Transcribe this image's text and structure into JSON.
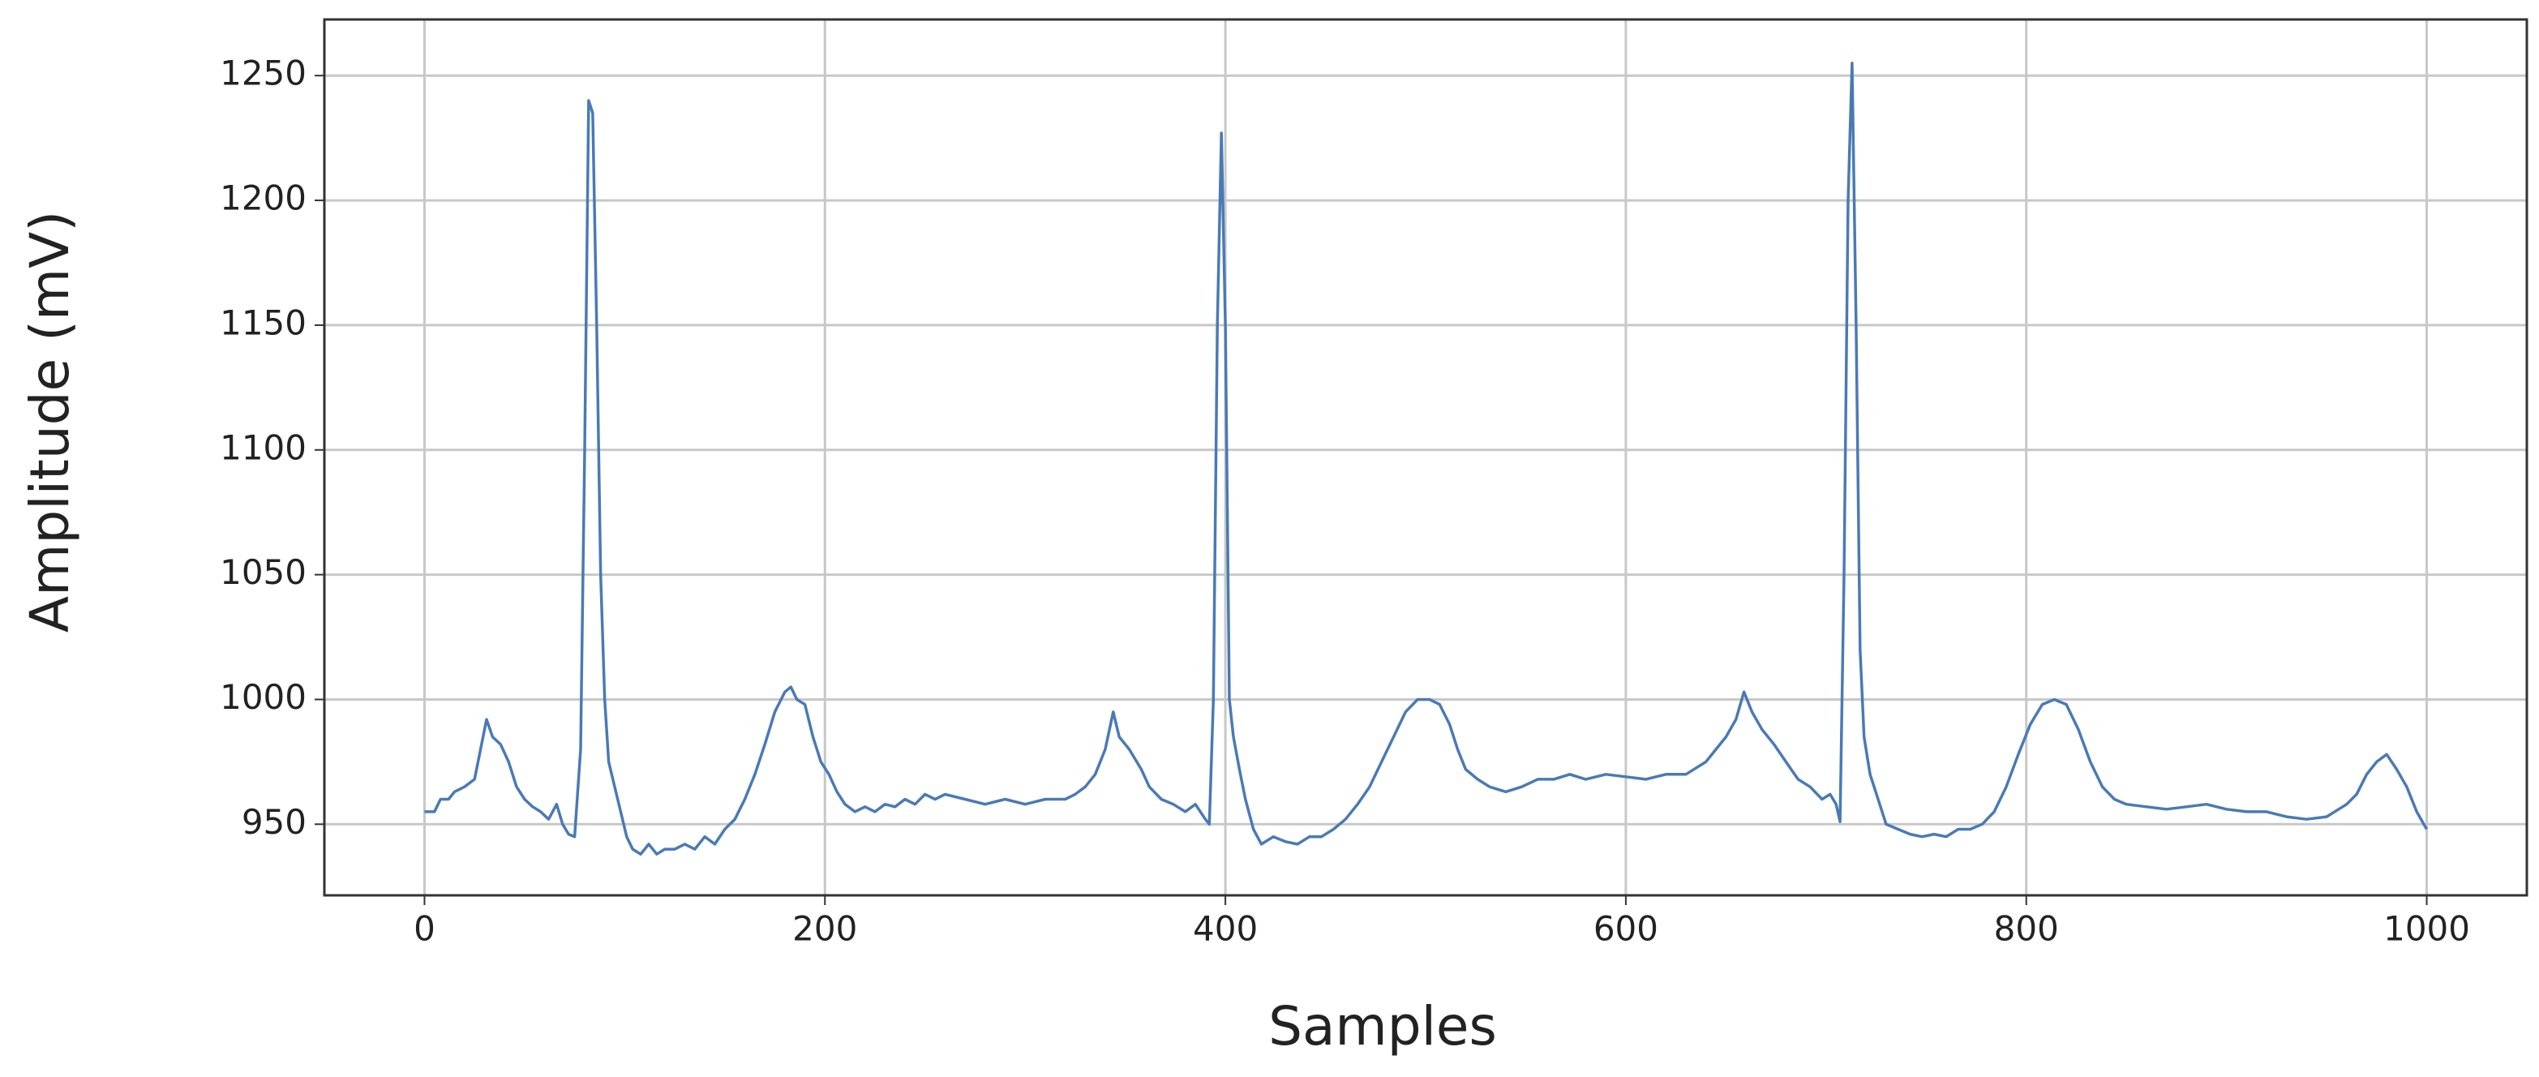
{
  "chart_data": {
    "type": "line",
    "x_label": "Samples",
    "y_label": "Amplitude (mV)",
    "x": [
      0,
      5,
      8,
      12,
      15,
      20,
      25,
      28,
      31,
      34,
      38,
      42,
      46,
      50,
      54,
      58,
      62,
      66,
      69,
      72,
      75,
      78,
      80,
      82,
      84,
      86,
      88,
      90,
      92,
      95,
      98,
      101,
      104,
      108,
      112,
      116,
      120,
      125,
      130,
      135,
      140,
      145,
      150,
      155,
      160,
      165,
      170,
      175,
      180,
      183,
      186,
      190,
      194,
      198,
      202,
      206,
      210,
      215,
      220,
      225,
      230,
      235,
      240,
      245,
      250,
      255,
      260,
      270,
      280,
      290,
      300,
      310,
      320,
      325,
      330,
      335,
      340,
      344,
      347,
      352,
      358,
      362,
      368,
      374,
      380,
      385,
      390,
      392,
      394,
      396,
      398,
      400,
      402,
      404,
      407,
      410,
      414,
      418,
      424,
      430,
      436,
      442,
      448,
      454,
      460,
      466,
      472,
      478,
      484,
      490,
      496,
      502,
      507,
      512,
      516,
      520,
      526,
      532,
      540,
      548,
      556,
      564,
      572,
      580,
      590,
      600,
      610,
      620,
      630,
      640,
      645,
      650,
      655,
      659,
      663,
      668,
      674,
      680,
      686,
      692,
      698,
      702,
      705,
      707,
      709,
      711,
      713,
      715,
      717,
      719,
      722,
      726,
      730,
      736,
      742,
      748,
      754,
      760,
      766,
      772,
      778,
      784,
      790,
      796,
      802,
      808,
      814,
      820,
      826,
      832,
      838,
      844,
      850,
      860,
      870,
      880,
      890,
      900,
      910,
      920,
      930,
      940,
      950,
      960,
      965,
      970,
      975,
      980,
      985,
      990,
      995,
      1000
    ],
    "values": [
      955,
      955,
      960,
      960,
      963,
      965,
      968,
      980,
      992,
      985,
      982,
      975,
      965,
      960,
      957,
      955,
      952,
      958,
      950,
      946,
      945,
      980,
      1100,
      1240,
      1235,
      1150,
      1050,
      1000,
      975,
      965,
      955,
      945,
      940,
      938,
      942,
      938,
      940,
      940,
      942,
      940,
      945,
      942,
      948,
      952,
      960,
      970,
      982,
      995,
      1003,
      1005,
      1000,
      998,
      985,
      975,
      970,
      963,
      958,
      955,
      957,
      955,
      958,
      957,
      960,
      958,
      962,
      960,
      962,
      960,
      958,
      960,
      958,
      960,
      960,
      962,
      965,
      970,
      980,
      995,
      985,
      980,
      972,
      965,
      960,
      958,
      955,
      958,
      952,
      950,
      1000,
      1150,
      1227,
      1150,
      1000,
      985,
      972,
      960,
      948,
      942,
      945,
      943,
      942,
      945,
      945,
      948,
      952,
      958,
      965,
      975,
      985,
      995,
      1000,
      1000,
      998,
      990,
      980,
      972,
      968,
      965,
      963,
      965,
      968,
      968,
      970,
      968,
      970,
      969,
      968,
      970,
      970,
      975,
      980,
      985,
      992,
      1003,
      995,
      988,
      982,
      975,
      968,
      965,
      960,
      962,
      958,
      951,
      1050,
      1200,
      1255,
      1150,
      1020,
      985,
      970,
      960,
      950,
      948,
      946,
      945,
      946,
      945,
      948,
      948,
      950,
      955,
      965,
      978,
      990,
      998,
      1000,
      998,
      988,
      975,
      965,
      960,
      958,
      957,
      956,
      957,
      958,
      956,
      955,
      955,
      953,
      952,
      953,
      958,
      962,
      970,
      975,
      978,
      972,
      965,
      955,
      948
    ],
    "color": "#4a7ab5",
    "xlim": [
      -50,
      1050
    ],
    "ylim": [
      921.5,
      1272.5
    ],
    "xticks": [
      0,
      200,
      400,
      600,
      800,
      1000
    ],
    "yticks": [
      950,
      1000,
      1050,
      1100,
      1150,
      1200,
      1250
    ],
    "grid": true
  }
}
